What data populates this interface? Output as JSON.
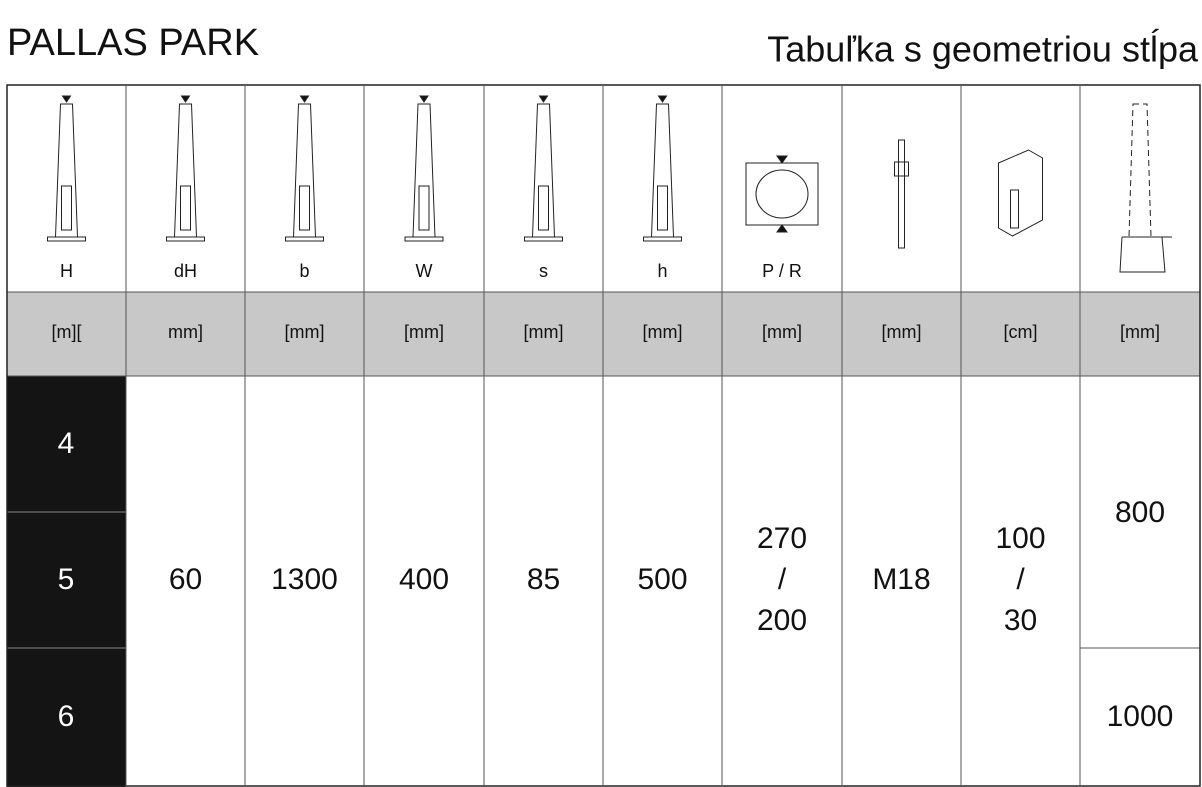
{
  "header": {
    "title": "PALLAS PARK",
    "subtitle": "Tabuľka s geometriou stĺpa"
  },
  "table": {
    "columns": [
      {
        "symbol": "H",
        "unit": "[m]["
      },
      {
        "symbol": "dH",
        "unit": "mm]"
      },
      {
        "symbol": "b",
        "unit": "[mm]"
      },
      {
        "symbol": "W",
        "unit": "[mm]"
      },
      {
        "symbol": "s",
        "unit": "[mm]"
      },
      {
        "symbol": "h",
        "unit": "[mm]"
      },
      {
        "symbol": "P / R",
        "unit": "[mm]"
      },
      {
        "unit": "[mm]"
      },
      {
        "unit": "[cm]"
      },
      {
        "unit": "[mm]"
      }
    ],
    "heights": [
      "4",
      "5",
      "6"
    ],
    "shared": [
      [
        "60"
      ],
      [
        "1300"
      ],
      [
        "400"
      ],
      [
        "85"
      ],
      [
        "500"
      ],
      [
        "270",
        "/",
        "200"
      ],
      [
        "M18"
      ],
      [
        "100",
        "/",
        "30"
      ]
    ],
    "last": [
      "800",
      "1000"
    ]
  }
}
